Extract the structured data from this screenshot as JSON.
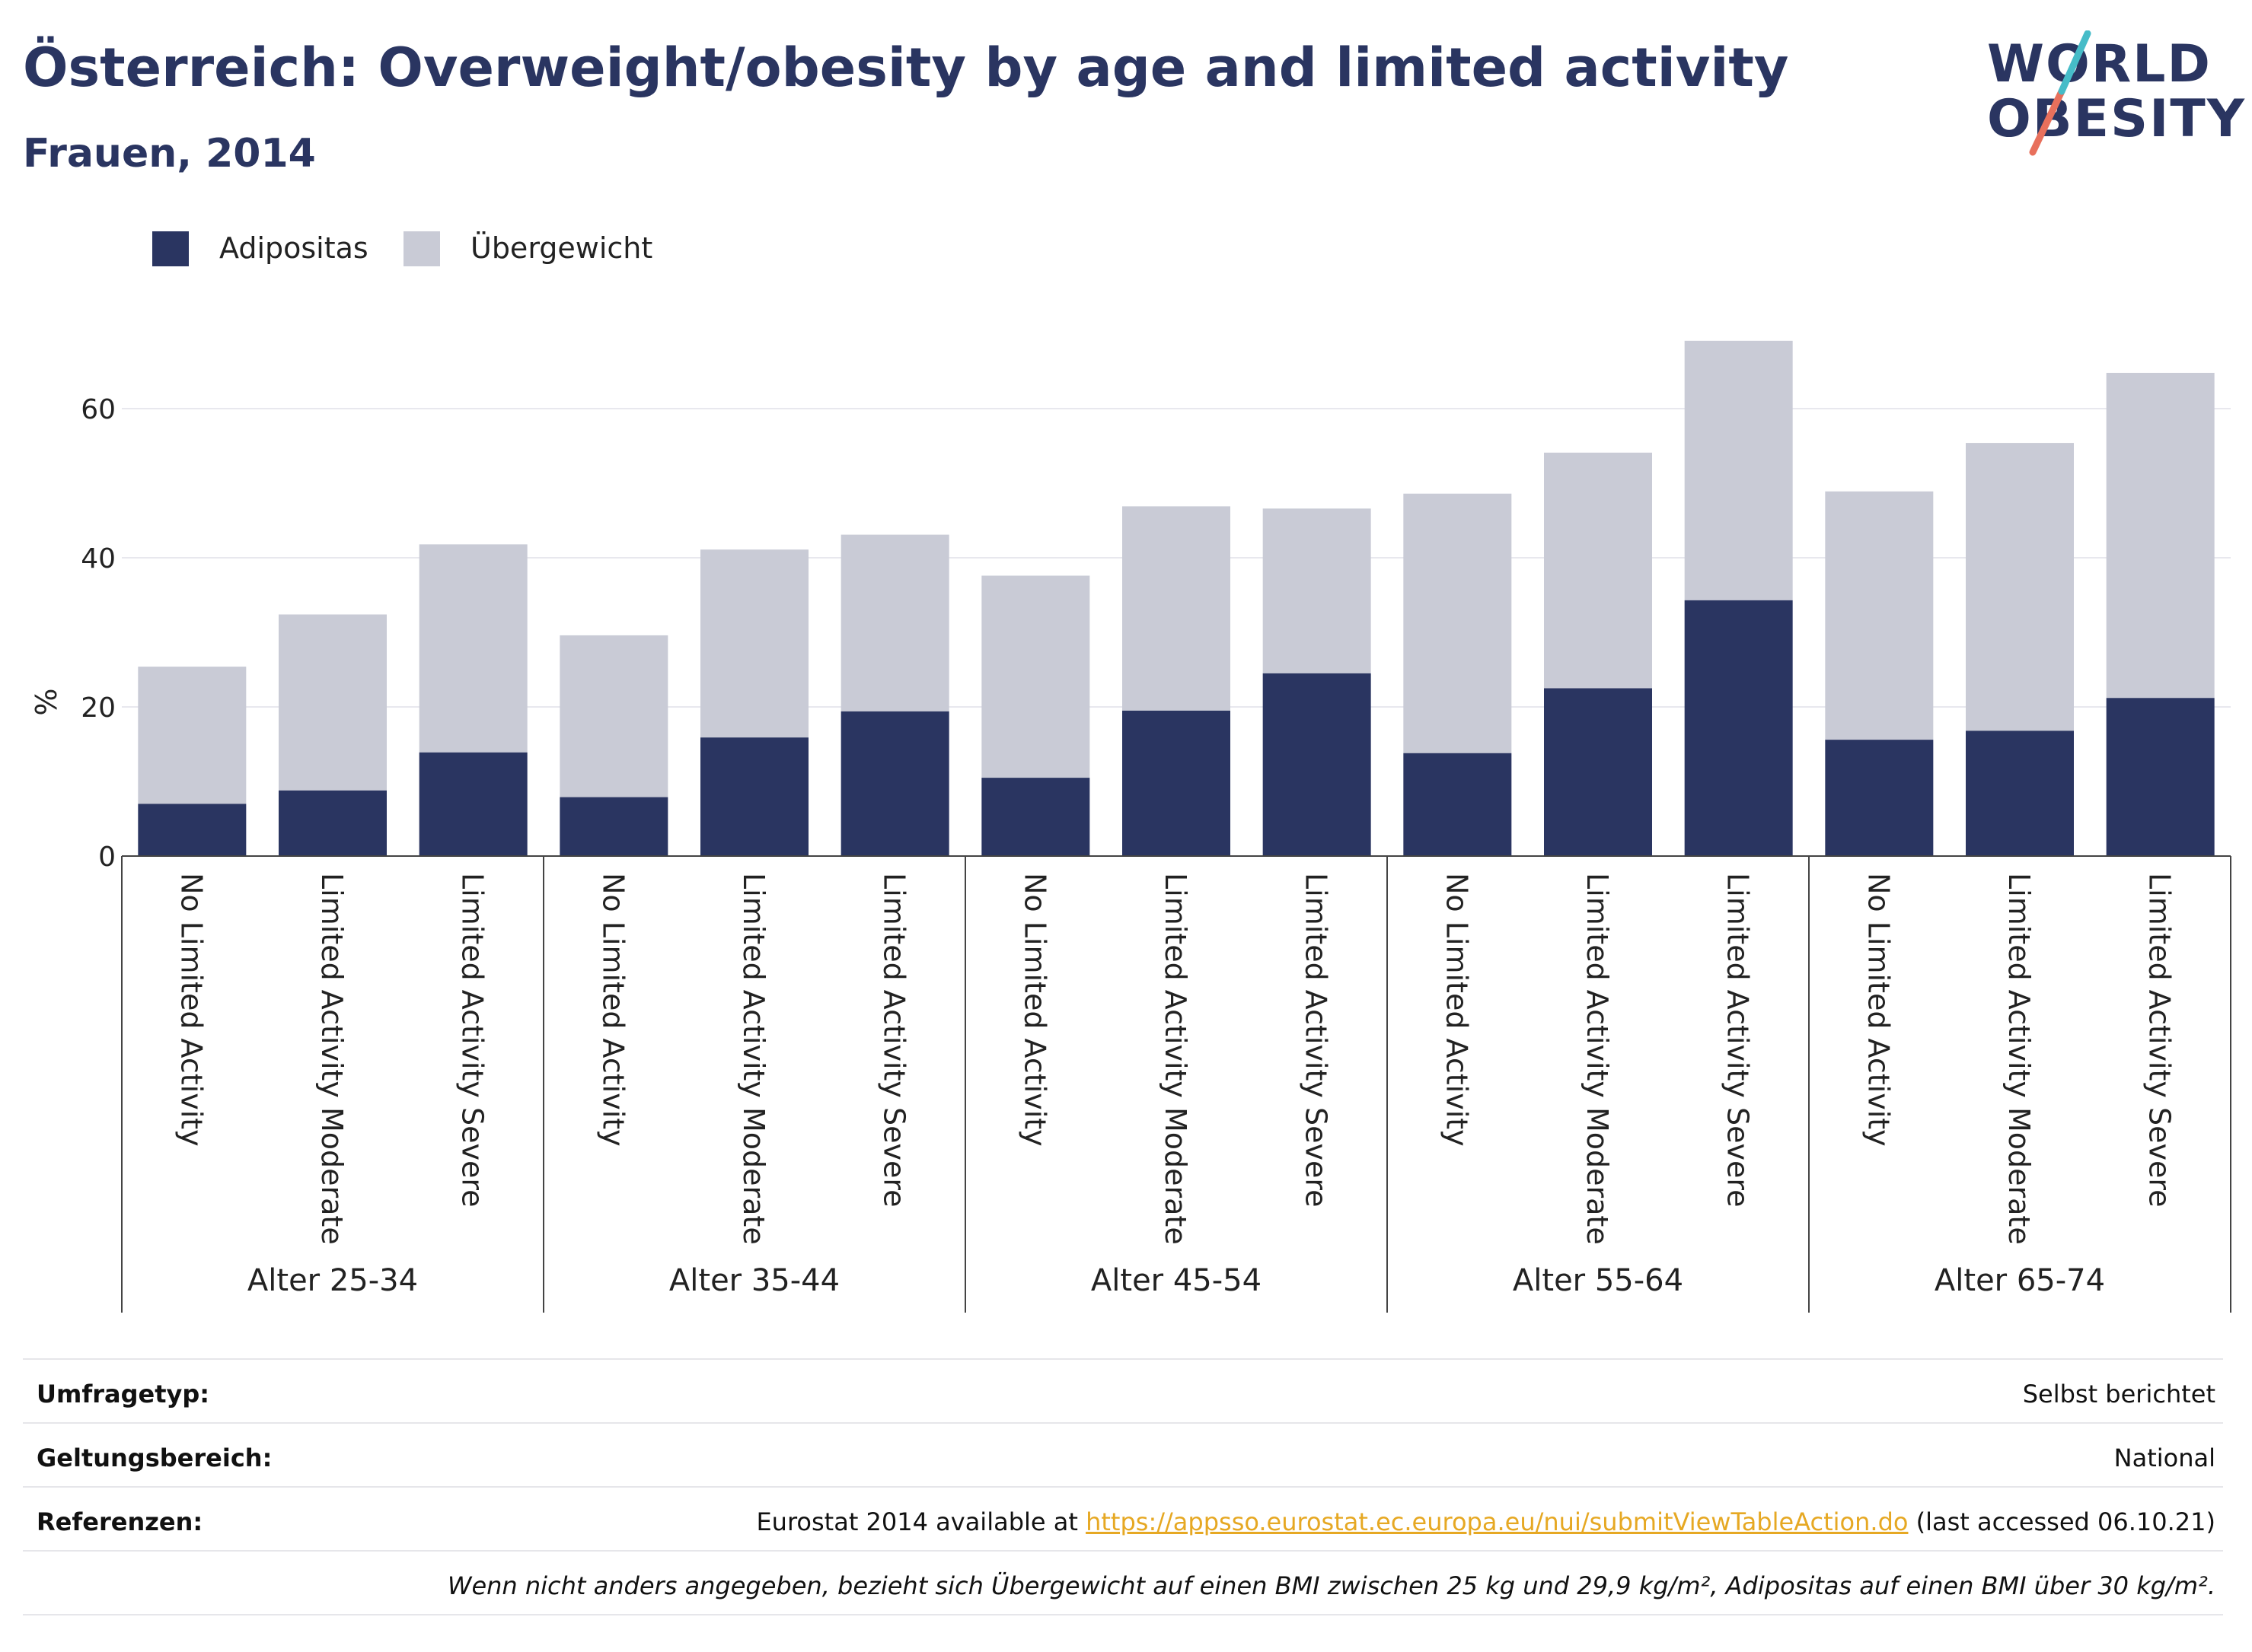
{
  "header": {
    "title": "Österreich: Overweight/obesity by age and limited activity",
    "subtitle": "Frauen, 2014"
  },
  "logo": {
    "line1": "WORLD",
    "line2": "OBESITY",
    "accent_colors": [
      "#46bcc8",
      "#e8705c"
    ]
  },
  "legend": [
    {
      "label": "Adipositas",
      "color": "#2a3561"
    },
    {
      "label": "Übergewicht",
      "color": "#c9cbd6"
    }
  ],
  "chart_data": {
    "type": "bar",
    "stacked": true,
    "ylabel": "%",
    "ylim": [
      0,
      70
    ],
    "yticks": [
      0,
      20,
      40,
      60
    ],
    "grid": true,
    "legend_position": "top-left",
    "groups": [
      "Alter 25-34",
      "Alter 35-44",
      "Alter 45-54",
      "Alter 55-64",
      "Alter 65-74"
    ],
    "subcategories": [
      "No Limited Activity",
      "Limited Activity Moderate",
      "Limited Activity Severe"
    ],
    "series": [
      {
        "name": "Adipositas",
        "color": "#2a3561",
        "values": [
          7.0,
          8.8,
          13.9,
          7.9,
          15.9,
          19.4,
          10.5,
          19.5,
          24.5,
          13.8,
          22.5,
          34.3,
          15.6,
          16.8,
          21.2
        ]
      },
      {
        "name": "Übergewicht",
        "color": "#c9cbd6",
        "values": [
          18.4,
          23.6,
          27.9,
          21.7,
          25.2,
          23.7,
          27.1,
          27.4,
          22.1,
          34.8,
          31.6,
          34.8,
          33.3,
          38.6,
          43.6
        ]
      }
    ],
    "totals": [
      25.4,
      32.4,
      41.8,
      29.6,
      41.1,
      43.1,
      37.6,
      46.9,
      46.6,
      48.6,
      54.1,
      69.1,
      48.9,
      55.4,
      64.8
    ]
  },
  "footer": {
    "rows": [
      {
        "label": "Umfragetyp:",
        "value": "Selbst berichtet"
      },
      {
        "label": "Geltungsbereich:",
        "value": "National"
      },
      {
        "label": "Referenzen:",
        "value_pre": "Eurostat 2014 available at ",
        "link": "https://appsso.eurostat.ec.europa.eu/nui/submitViewTableAction.do",
        "value_post": " (last accessed 06.10.21)"
      }
    ],
    "note": "Wenn nicht anders angegeben, bezieht sich Übergewicht auf einen BMI zwischen 25 kg und 29,9 kg/m², Adipositas auf einen BMI über 30 kg/m²."
  }
}
